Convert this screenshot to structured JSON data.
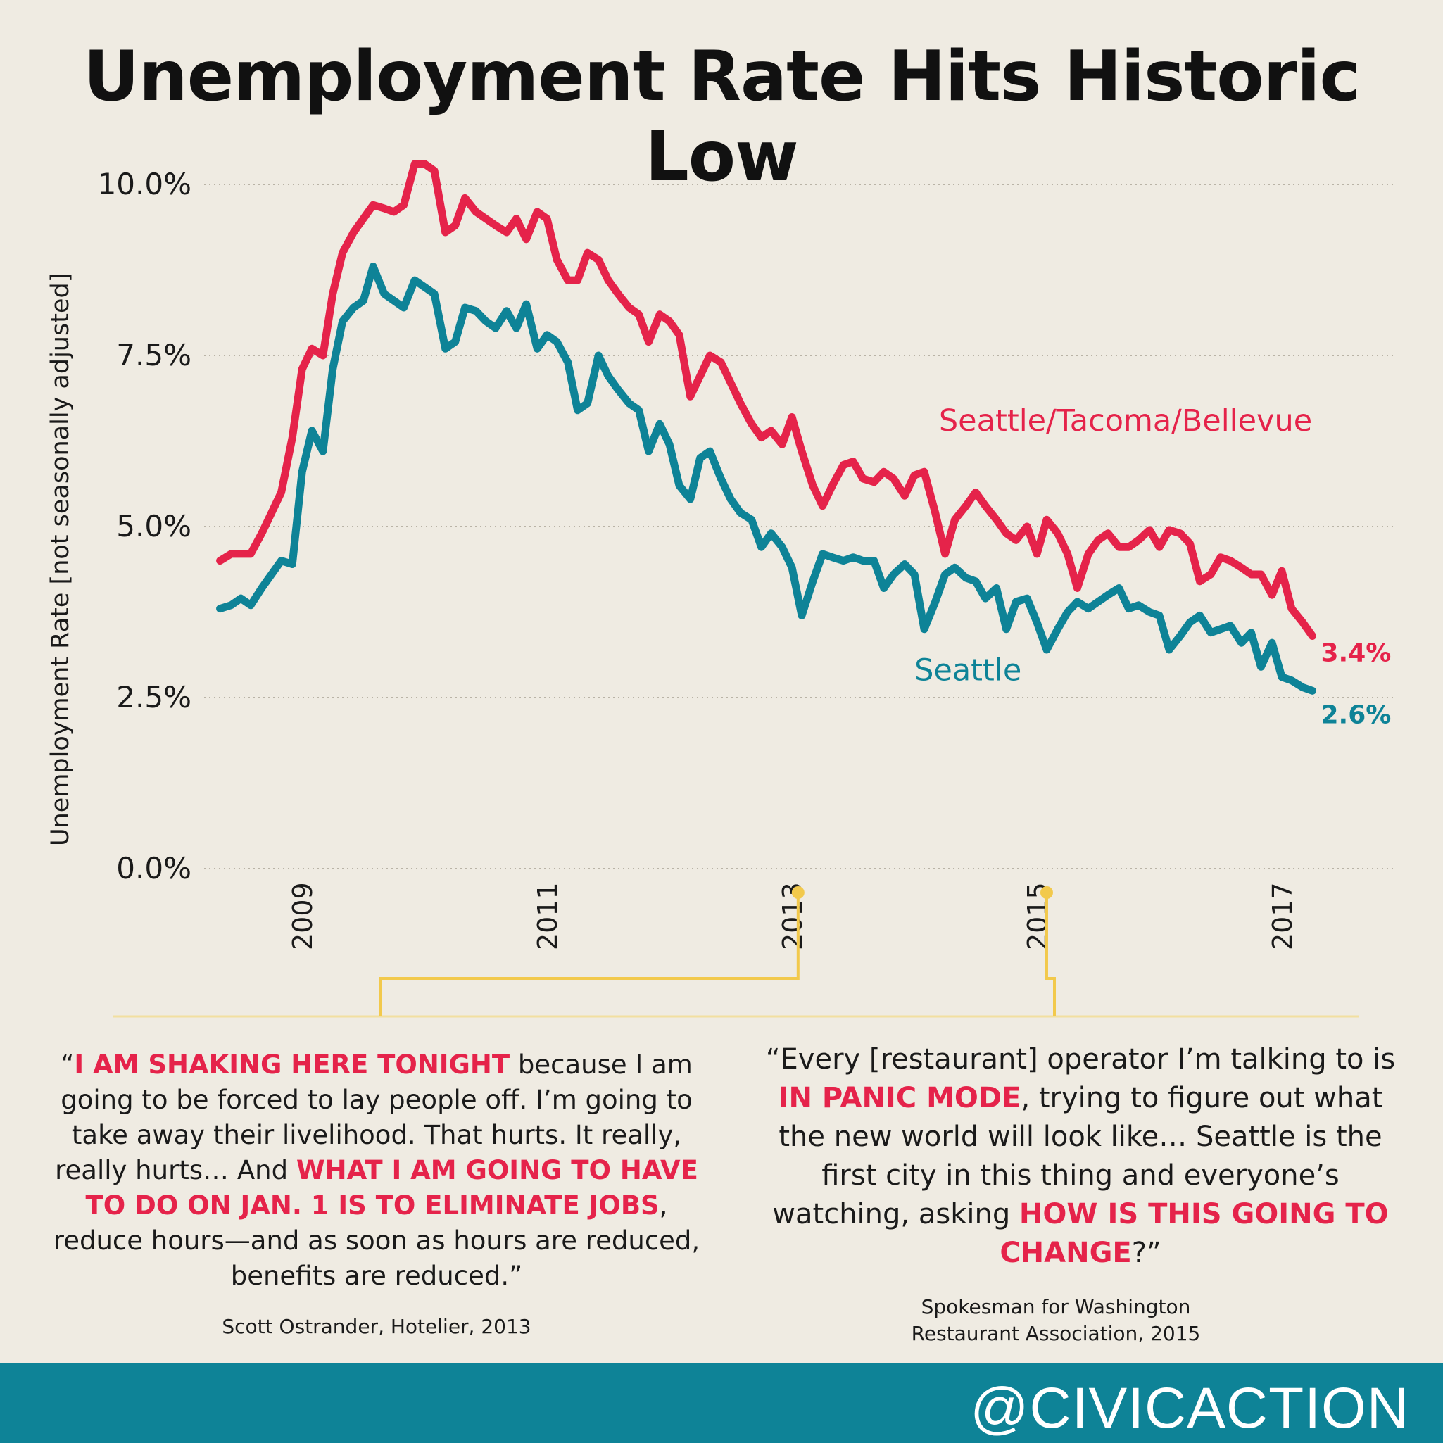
{
  "title": "Unemployment Rate Hits Historic Low",
  "colors": {
    "metro": "#e5234a",
    "seattle": "#0e8397",
    "timeline": "#f2c94c",
    "footer": "#0e8397"
  },
  "chart_data": {
    "type": "line",
    "title": "Unemployment Rate Hits Historic Low",
    "ylabel": "Unemployment Rate [not seasonally adjusted]",
    "xlabel": "",
    "ylim": [
      0,
      10
    ],
    "xlim": [
      2008.2,
      2018.0
    ],
    "yticks": [
      {
        "value": 10.0,
        "label": "10.0%"
      },
      {
        "value": 7.5,
        "label": "7.5%"
      },
      {
        "value": 5.0,
        "label": "5.0%"
      },
      {
        "value": 2.5,
        "label": "2.5%"
      },
      {
        "value": 0.0,
        "label": "0.0%"
      }
    ],
    "xticks": [
      {
        "value": 2009,
        "label": "2009"
      },
      {
        "value": 2011,
        "label": "2011"
      },
      {
        "value": 2013,
        "label": "2013"
      },
      {
        "value": 2015,
        "label": "2015"
      },
      {
        "value": 2017,
        "label": "2017"
      }
    ],
    "grid": true,
    "series": [
      {
        "name": "Seattle/Tacoma/Bellevue",
        "end_label": "3.4%",
        "points": [
          [
            2008.33,
            4.5
          ],
          [
            2008.42,
            4.6
          ],
          [
            2008.5,
            4.6
          ],
          [
            2008.58,
            4.6
          ],
          [
            2008.67,
            4.9
          ],
          [
            2008.75,
            5.2
          ],
          [
            2008.83,
            5.5
          ],
          [
            2008.92,
            6.3
          ],
          [
            2009.0,
            7.3
          ],
          [
            2009.08,
            7.6
          ],
          [
            2009.17,
            7.5
          ],
          [
            2009.25,
            8.4
          ],
          [
            2009.33,
            9.0
          ],
          [
            2009.42,
            9.3
          ],
          [
            2009.5,
            9.5
          ],
          [
            2009.58,
            9.7
          ],
          [
            2009.67,
            9.65
          ],
          [
            2009.75,
            9.6
          ],
          [
            2009.83,
            9.7
          ],
          [
            2009.92,
            10.3
          ],
          [
            2010.0,
            10.3
          ],
          [
            2010.08,
            10.2
          ],
          [
            2010.17,
            9.3
          ],
          [
            2010.25,
            9.4
          ],
          [
            2010.33,
            9.8
          ],
          [
            2010.42,
            9.6
          ],
          [
            2010.5,
            9.5
          ],
          [
            2010.58,
            9.4
          ],
          [
            2010.67,
            9.3
          ],
          [
            2010.75,
            9.5
          ],
          [
            2010.83,
            9.2
          ],
          [
            2010.92,
            9.6
          ],
          [
            2011.0,
            9.5
          ],
          [
            2011.08,
            8.9
          ],
          [
            2011.17,
            8.6
          ],
          [
            2011.25,
            8.6
          ],
          [
            2011.33,
            9.0
          ],
          [
            2011.42,
            8.9
          ],
          [
            2011.5,
            8.6
          ],
          [
            2011.58,
            8.4
          ],
          [
            2011.67,
            8.2
          ],
          [
            2011.75,
            8.1
          ],
          [
            2011.83,
            7.7
          ],
          [
            2011.92,
            8.1
          ],
          [
            2012.0,
            8.0
          ],
          [
            2012.08,
            7.8
          ],
          [
            2012.17,
            6.9
          ],
          [
            2012.25,
            7.2
          ],
          [
            2012.33,
            7.5
          ],
          [
            2012.42,
            7.4
          ],
          [
            2012.5,
            7.1
          ],
          [
            2012.58,
            6.8
          ],
          [
            2012.67,
            6.5
          ],
          [
            2012.75,
            6.3
          ],
          [
            2012.83,
            6.4
          ],
          [
            2012.92,
            6.2
          ],
          [
            2013.0,
            6.6
          ],
          [
            2013.08,
            6.1
          ],
          [
            2013.17,
            5.6
          ],
          [
            2013.25,
            5.3
          ],
          [
            2013.33,
            5.6
          ],
          [
            2013.42,
            5.9
          ],
          [
            2013.5,
            5.95
          ],
          [
            2013.58,
            5.7
          ],
          [
            2013.67,
            5.65
          ],
          [
            2013.75,
            5.8
          ],
          [
            2013.83,
            5.7
          ],
          [
            2013.92,
            5.45
          ],
          [
            2014.0,
            5.75
          ],
          [
            2014.08,
            5.8
          ],
          [
            2014.17,
            5.2
          ],
          [
            2014.25,
            4.6
          ],
          [
            2014.33,
            5.1
          ],
          [
            2014.42,
            5.3
          ],
          [
            2014.5,
            5.5
          ],
          [
            2014.58,
            5.3
          ],
          [
            2014.67,
            5.1
          ],
          [
            2014.75,
            4.9
          ],
          [
            2014.83,
            4.8
          ],
          [
            2014.92,
            5.0
          ],
          [
            2015.0,
            4.6
          ],
          [
            2015.08,
            5.1
          ],
          [
            2015.17,
            4.9
          ],
          [
            2015.25,
            4.6
          ],
          [
            2015.33,
            4.1
          ],
          [
            2015.42,
            4.6
          ],
          [
            2015.5,
            4.8
          ],
          [
            2015.58,
            4.9
          ],
          [
            2015.67,
            4.7
          ],
          [
            2015.75,
            4.7
          ],
          [
            2015.83,
            4.8
          ],
          [
            2015.92,
            4.95
          ],
          [
            2016.0,
            4.7
          ],
          [
            2016.08,
            4.95
          ],
          [
            2016.17,
            4.9
          ],
          [
            2016.25,
            4.75
          ],
          [
            2016.33,
            4.2
          ],
          [
            2016.42,
            4.3
          ],
          [
            2016.5,
            4.55
          ],
          [
            2016.58,
            4.5
          ],
          [
            2016.67,
            4.4
          ],
          [
            2016.75,
            4.3
          ],
          [
            2016.83,
            4.3
          ],
          [
            2016.92,
            4.0
          ],
          [
            2017.0,
            4.35
          ],
          [
            2017.08,
            3.8
          ],
          [
            2017.17,
            3.6
          ],
          [
            2017.25,
            3.4
          ]
        ]
      },
      {
        "name": "Seattle",
        "end_label": "2.6%",
        "points": [
          [
            2008.33,
            3.8
          ],
          [
            2008.42,
            3.85
          ],
          [
            2008.5,
            3.95
          ],
          [
            2008.58,
            3.85
          ],
          [
            2008.67,
            4.1
          ],
          [
            2008.75,
            4.3
          ],
          [
            2008.83,
            4.5
          ],
          [
            2008.92,
            4.45
          ],
          [
            2009.0,
            5.8
          ],
          [
            2009.08,
            6.4
          ],
          [
            2009.17,
            6.1
          ],
          [
            2009.25,
            7.3
          ],
          [
            2009.33,
            8.0
          ],
          [
            2009.42,
            8.2
          ],
          [
            2009.5,
            8.3
          ],
          [
            2009.58,
            8.8
          ],
          [
            2009.67,
            8.4
          ],
          [
            2009.75,
            8.3
          ],
          [
            2009.83,
            8.2
          ],
          [
            2009.92,
            8.6
          ],
          [
            2010.0,
            8.5
          ],
          [
            2010.08,
            8.4
          ],
          [
            2010.17,
            7.6
          ],
          [
            2010.25,
            7.7
          ],
          [
            2010.33,
            8.2
          ],
          [
            2010.42,
            8.15
          ],
          [
            2010.5,
            8.0
          ],
          [
            2010.58,
            7.9
          ],
          [
            2010.67,
            8.15
          ],
          [
            2010.75,
            7.9
          ],
          [
            2010.83,
            8.25
          ],
          [
            2010.92,
            7.6
          ],
          [
            2011.0,
            7.8
          ],
          [
            2011.08,
            7.7
          ],
          [
            2011.17,
            7.4
          ],
          [
            2011.25,
            6.7
          ],
          [
            2011.33,
            6.8
          ],
          [
            2011.42,
            7.5
          ],
          [
            2011.5,
            7.2
          ],
          [
            2011.58,
            7.0
          ],
          [
            2011.67,
            6.8
          ],
          [
            2011.75,
            6.7
          ],
          [
            2011.83,
            6.1
          ],
          [
            2011.92,
            6.5
          ],
          [
            2012.0,
            6.2
          ],
          [
            2012.08,
            5.6
          ],
          [
            2012.17,
            5.4
          ],
          [
            2012.25,
            6.0
          ],
          [
            2012.33,
            6.1
          ],
          [
            2012.42,
            5.7
          ],
          [
            2012.5,
            5.4
          ],
          [
            2012.58,
            5.2
          ],
          [
            2012.67,
            5.1
          ],
          [
            2012.75,
            4.7
          ],
          [
            2012.83,
            4.9
          ],
          [
            2012.92,
            4.7
          ],
          [
            2013.0,
            4.4
          ],
          [
            2013.08,
            3.7
          ],
          [
            2013.17,
            4.2
          ],
          [
            2013.25,
            4.6
          ],
          [
            2013.33,
            4.55
          ],
          [
            2013.42,
            4.5
          ],
          [
            2013.5,
            4.55
          ],
          [
            2013.58,
            4.5
          ],
          [
            2013.67,
            4.5
          ],
          [
            2013.75,
            4.1
          ],
          [
            2013.83,
            4.3
          ],
          [
            2013.92,
            4.45
          ],
          [
            2014.0,
            4.3
          ],
          [
            2014.08,
            3.5
          ],
          [
            2014.17,
            3.9
          ],
          [
            2014.25,
            4.3
          ],
          [
            2014.33,
            4.4
          ],
          [
            2014.42,
            4.25
          ],
          [
            2014.5,
            4.2
          ],
          [
            2014.58,
            3.95
          ],
          [
            2014.67,
            4.1
          ],
          [
            2014.75,
            3.5
          ],
          [
            2014.83,
            3.9
          ],
          [
            2014.92,
            3.95
          ],
          [
            2015.0,
            3.6
          ],
          [
            2015.08,
            3.2
          ],
          [
            2015.17,
            3.5
          ],
          [
            2015.25,
            3.75
          ],
          [
            2015.33,
            3.9
          ],
          [
            2015.42,
            3.8
          ],
          [
            2015.5,
            3.9
          ],
          [
            2015.58,
            4.0
          ],
          [
            2015.67,
            4.1
          ],
          [
            2015.75,
            3.8
          ],
          [
            2015.83,
            3.85
          ],
          [
            2015.92,
            3.75
          ],
          [
            2016.0,
            3.7
          ],
          [
            2016.08,
            3.2
          ],
          [
            2016.17,
            3.4
          ],
          [
            2016.25,
            3.6
          ],
          [
            2016.33,
            3.7
          ],
          [
            2016.42,
            3.45
          ],
          [
            2016.5,
            3.5
          ],
          [
            2016.58,
            3.55
          ],
          [
            2016.67,
            3.3
          ],
          [
            2016.75,
            3.45
          ],
          [
            2016.83,
            2.95
          ],
          [
            2016.92,
            3.3
          ],
          [
            2017.0,
            2.8
          ],
          [
            2017.08,
            2.75
          ],
          [
            2017.17,
            2.65
          ],
          [
            2017.25,
            2.6
          ]
        ]
      }
    ],
    "annotations": [
      {
        "series": "Seattle/Tacoma/Bellevue",
        "text": "Seattle/Tacoma/Bellevue",
        "x": 2014.2,
        "y": 6.4
      },
      {
        "series": "Seattle",
        "text": "Seattle",
        "x": 2014.0,
        "y": 2.75
      }
    ],
    "timeline_markers": [
      2013.05,
      2015.08
    ]
  },
  "quotes": [
    {
      "parts": [
        {
          "text": "“",
          "hl": false
        },
        {
          "text": "I AM SHAKING HERE TONIGHT",
          "hl": true
        },
        {
          "text": " because I am going to be forced to lay people off. I’m going to take away their livelihood. That hurts. It really, really hurts… And ",
          "hl": false
        },
        {
          "text": "WHAT I AM GOING TO HAVE TO DO ON JAN. 1 IS TO ELIMINATE JOBS",
          "hl": true
        },
        {
          "text": ", reduce hours—and as soon as hours are reduced, benefits are reduced.”",
          "hl": false
        }
      ],
      "attribution": "Scott Ostrander, Hotelier, 2013"
    },
    {
      "parts": [
        {
          "text": "“Every [restaurant] operator I’m talking to is ",
          "hl": false
        },
        {
          "text": "IN PANIC MODE",
          "hl": true
        },
        {
          "text": ", trying to figure out what the new world will look like… Seattle is the first city in this thing and everyone’s watching, asking ",
          "hl": false
        },
        {
          "text": "HOW IS THIS GOING TO CHANGE",
          "hl": true
        },
        {
          "text": "?”",
          "hl": false
        }
      ],
      "attribution_line1": "Spokesman for Washington",
      "attribution_line2": "Restaurant Association, 2015"
    }
  ],
  "footer": {
    "handle": "@CIVICACTION"
  }
}
